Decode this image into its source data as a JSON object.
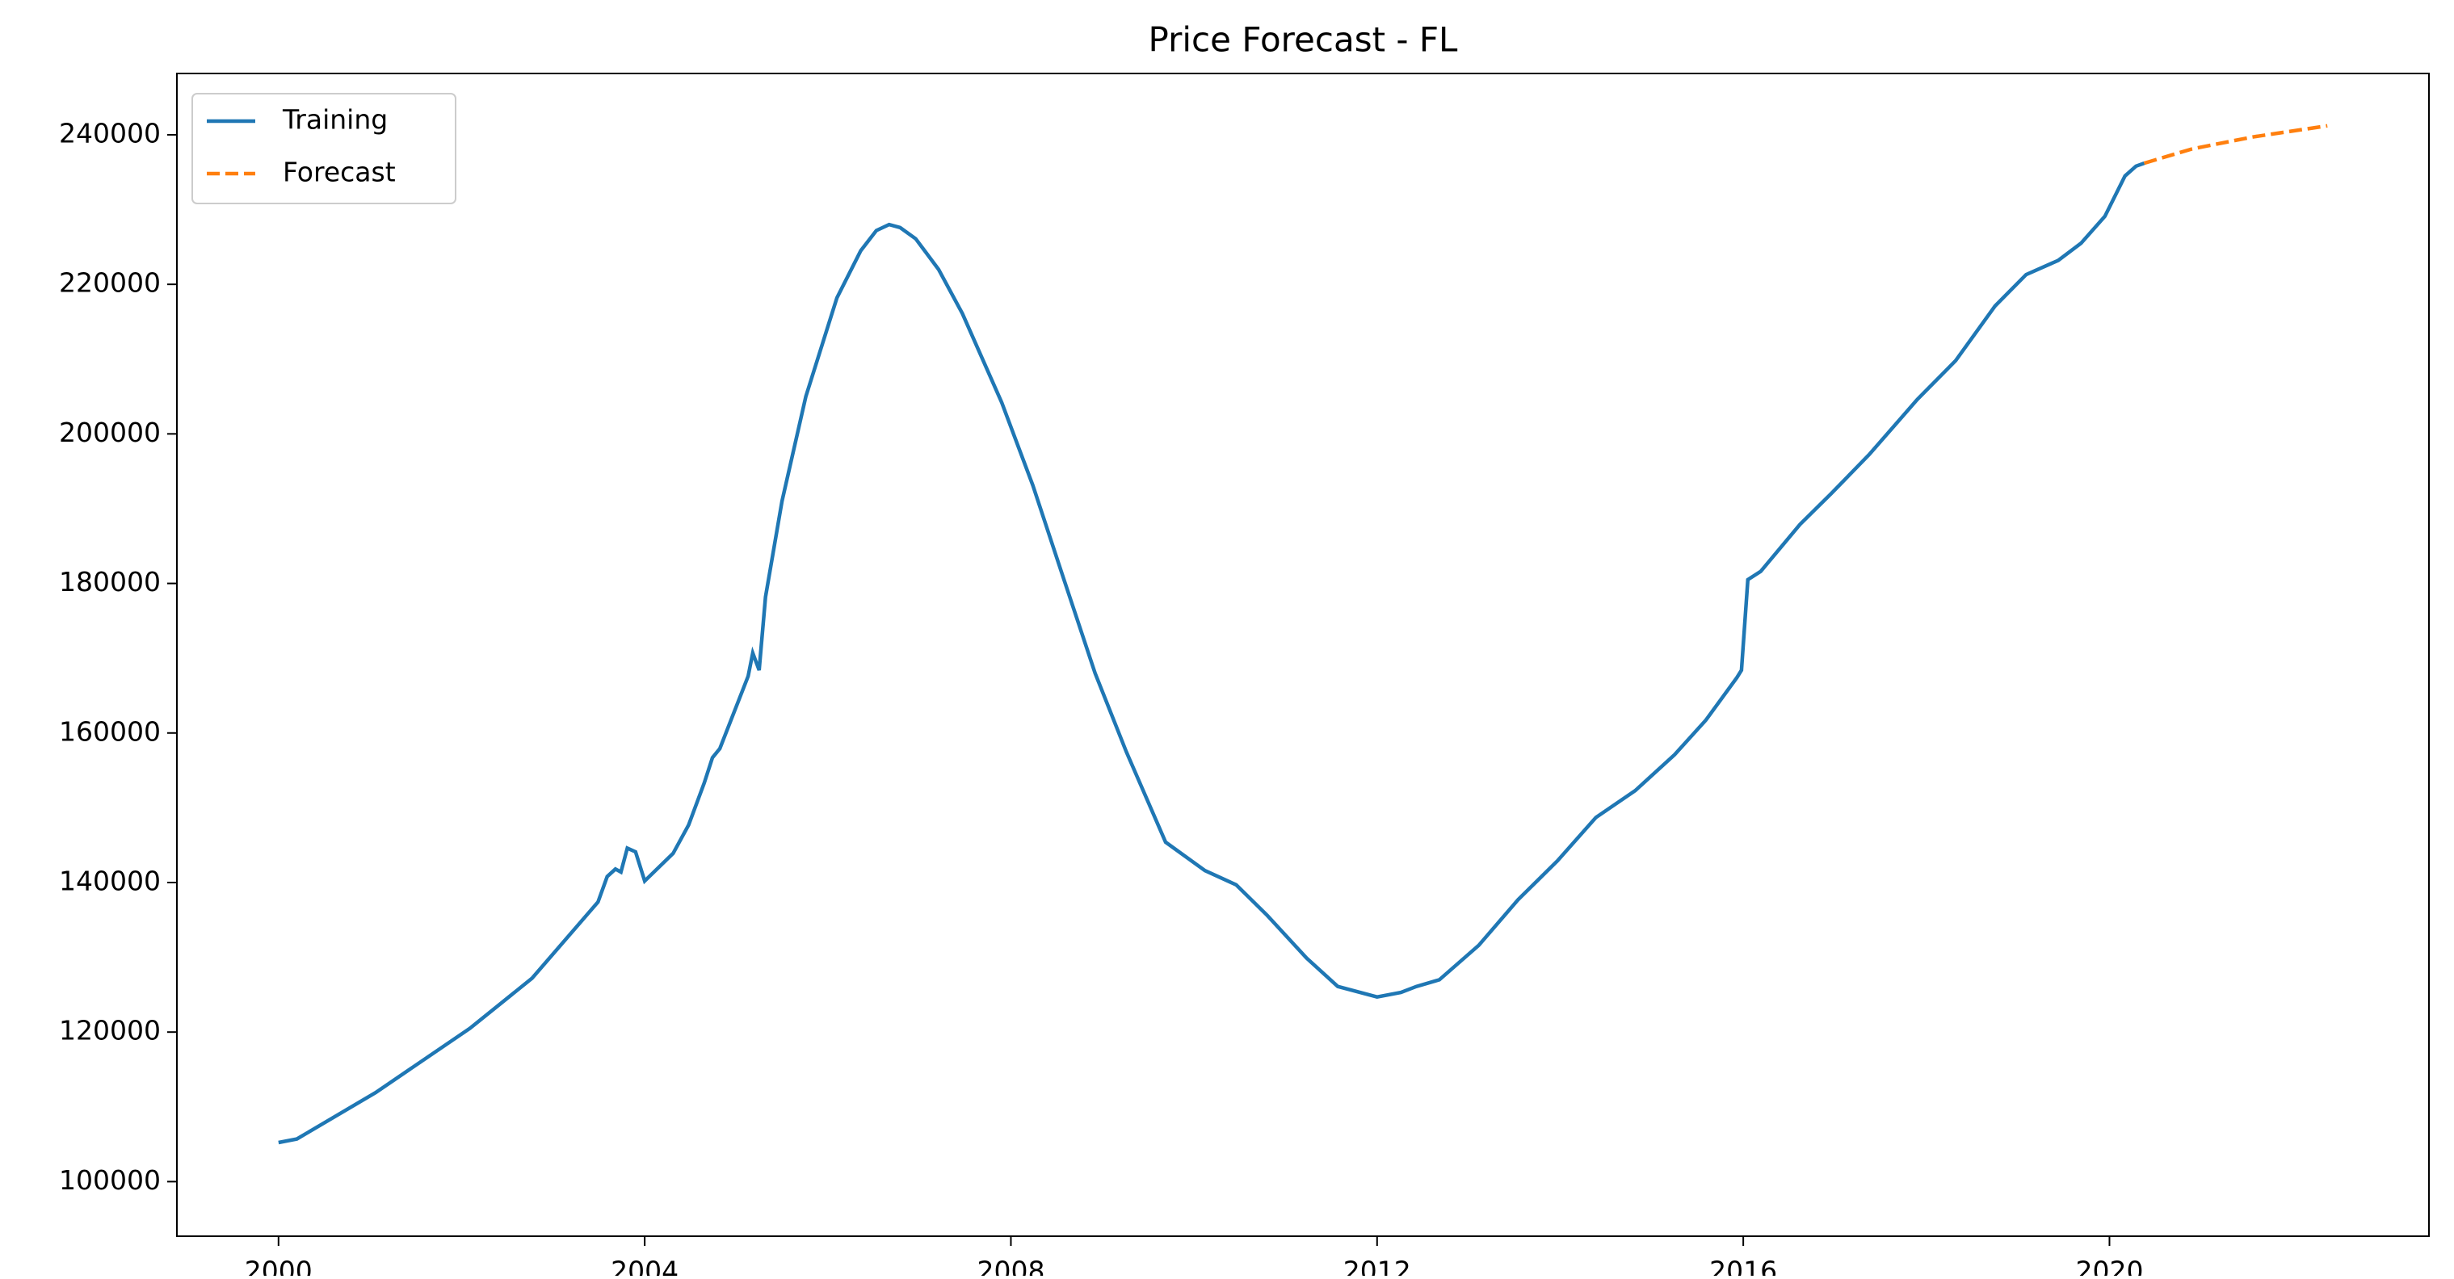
{
  "chart_data": {
    "type": "line",
    "title": "Price Forecast - FL",
    "xlim": [
      1998.89,
      2023.49
    ],
    "xticks": [
      2000,
      2004,
      2008,
      2012,
      2016,
      2020
    ],
    "ylim": [
      92700,
      248200
    ],
    "yticks": [
      100000,
      120000,
      140000,
      160000,
      180000,
      200000,
      220000,
      240000
    ],
    "legend": "upper left",
    "series": [
      {
        "name": "Training",
        "color": "#1f77b4",
        "dash": "solid",
        "x": [
          2000.0,
          2000.2,
          2001.06,
          2002.09,
          2002.77,
          2003.49,
          2003.59,
          2003.68,
          2003.74,
          2003.81,
          2003.9,
          2004.0,
          2004.31,
          2004.48,
          2004.65,
          2004.74,
          2004.82,
          2005.13,
          2005.18,
          2005.25,
          2005.32,
          2005.5,
          2005.76,
          2006.1,
          2006.36,
          2006.53,
          2006.67,
          2006.79,
          2006.96,
          2007.21,
          2007.47,
          2007.9,
          2008.24,
          2008.58,
          2008.92,
          2009.26,
          2009.69,
          2010.12,
          2010.46,
          2010.8,
          2011.23,
          2011.57,
          2012.0,
          2012.26,
          2012.43,
          2012.68,
          2013.11,
          2013.54,
          2013.97,
          2014.39,
          2014.82,
          2015.25,
          2015.59,
          2015.93,
          2015.98,
          2016.05,
          2016.19,
          2016.62,
          2016.96,
          2017.38,
          2017.9,
          2018.32,
          2018.75,
          2019.09,
          2019.44,
          2019.69,
          2019.95,
          2020.17,
          2020.29,
          2020.38
        ],
        "values": [
          105230,
          105700,
          111900,
          120500,
          127200,
          137400,
          140800,
          141800,
          141400,
          144600,
          144100,
          140200,
          143900,
          147700,
          153300,
          156700,
          157900,
          167600,
          170700,
          168400,
          178200,
          191000,
          205000,
          218200,
          224500,
          227200,
          228000,
          227600,
          226100,
          222000,
          216100,
          204200,
          193100,
          180500,
          168000,
          157500,
          145400,
          141600,
          139700,
          135600,
          129900,
          126100,
          124700,
          125300,
          126100,
          127000,
          131600,
          137700,
          142900,
          148700,
          152300,
          157100,
          161700,
          167400,
          168400,
          180500,
          181600,
          187900,
          192000,
          197300,
          204600,
          209800,
          217100,
          221300,
          223200,
          225500,
          229100,
          234500,
          235800,
          236200
        ]
      },
      {
        "name": "Forecast",
        "color": "#ff7f0e",
        "dash": "dashed",
        "x": [
          2020.38,
          2020.9,
          2021.56,
          2022.38
        ],
        "values": [
          236200,
          238100,
          239700,
          241200
        ]
      }
    ]
  }
}
